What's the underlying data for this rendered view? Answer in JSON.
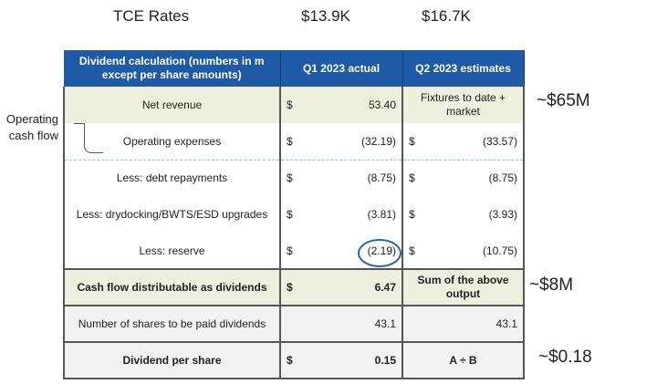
{
  "top": {
    "label": "TCE Rates",
    "q1": "$13.9K",
    "q2": "$16.7K"
  },
  "side_label": "Operating cash flow",
  "annotations": {
    "revenue": "~$65M",
    "cashflow": "~$8M",
    "dps": "~$0.18"
  },
  "table": {
    "headers": [
      "Dividend calculation (numbers in m except per share amounts)",
      "Q1 2023 actual",
      "Q2 2023 estimates"
    ],
    "rows": [
      {
        "label": "Net revenue",
        "q1_cur": "$",
        "q1": "53.40",
        "q2_cur": "",
        "q2": "Fixtures to date + market"
      },
      {
        "label": "Operating expenses",
        "q1_cur": "$",
        "q1": "(32.19)",
        "q2_cur": "$",
        "q2": "(33.57)"
      },
      {
        "label": "Less: debt repayments",
        "q1_cur": "$",
        "q1": "(8.75)",
        "q2_cur": "$",
        "q2": "(8.75)"
      },
      {
        "label": "Less: drydocking/BWTS/ESD upgrades",
        "q1_cur": "$",
        "q1": "(3.81)",
        "q2_cur": "$",
        "q2": "(3.93)"
      },
      {
        "label": "Less: reserve",
        "q1_cur": "$",
        "q1": "(2.19)",
        "q2_cur": "$",
        "q2": "(10.75)"
      },
      {
        "label": "Cash flow distributable as dividends",
        "q1_cur": "$",
        "q1": "6.47",
        "q2_cur": "",
        "q2": "Sum of the above output"
      },
      {
        "label": "Number of shares to be paid dividends",
        "q1_cur": "",
        "q1": "43.1",
        "q2_cur": "",
        "q2": "43.1"
      },
      {
        "label": "Dividend per share",
        "q1_cur": "$",
        "q1": "0.15",
        "q2_cur": "",
        "q2": "A ÷ B"
      }
    ]
  }
}
